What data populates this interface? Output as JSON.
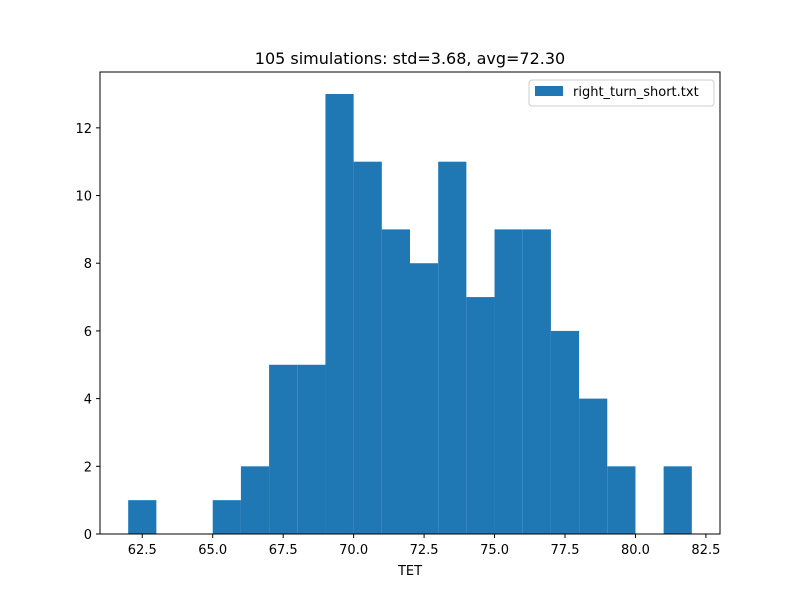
{
  "chart_data": {
    "type": "bar",
    "title": "105 simulations: std=3.68, avg=72.30",
    "xlabel": "TET",
    "ylabel": "",
    "xlim": [
      61.0,
      83.0
    ],
    "ylim": [
      0,
      13.65
    ],
    "x_ticks": [
      62.5,
      65.0,
      67.5,
      70.0,
      72.5,
      75.0,
      77.5,
      80.0,
      82.5
    ],
    "x_tick_labels": [
      "62.5",
      "65.0",
      "67.5",
      "70.0",
      "72.5",
      "75.0",
      "77.5",
      "80.0",
      "82.5"
    ],
    "y_ticks": [
      0,
      2,
      4,
      6,
      8,
      10,
      12
    ],
    "y_tick_labels": [
      "0",
      "2",
      "4",
      "6",
      "8",
      "10",
      "12"
    ],
    "bin_edges": [
      62,
      63,
      64,
      65,
      66,
      67,
      68,
      69,
      70,
      71,
      72,
      73,
      74,
      75,
      76,
      77,
      78,
      79,
      80,
      81,
      82
    ],
    "values": [
      1,
      0,
      0,
      1,
      2,
      5,
      5,
      13,
      11,
      9,
      8,
      11,
      7,
      9,
      9,
      6,
      4,
      2,
      0,
      2
    ],
    "series": [
      {
        "name": "right_turn_short.txt",
        "color": "#1f77b4"
      }
    ],
    "legend_position": "top-right",
    "grid": false
  }
}
